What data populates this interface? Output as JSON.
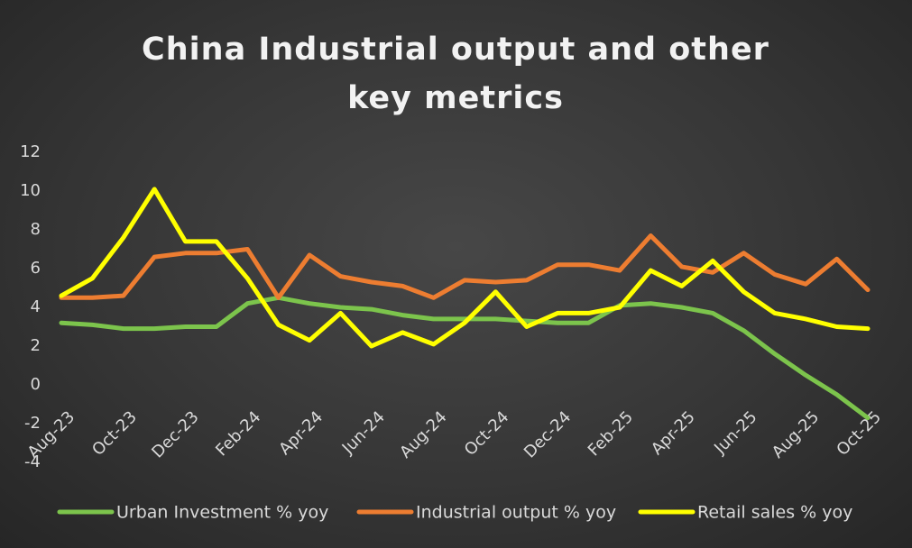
{
  "chart_data": {
    "type": "line",
    "title": "China Industrial output and other key metrics",
    "categories": [
      "Aug-23",
      null,
      "Oct-23",
      null,
      "Dec-23",
      null,
      "Feb-24",
      null,
      "Apr-24",
      null,
      "Jun-24",
      null,
      "Aug-24",
      null,
      "Oct-24",
      null,
      "Dec-24",
      null,
      "Feb-25",
      null,
      "Apr-25",
      null,
      "Jun-25",
      null,
      "Aug-25",
      null,
      "Oct-25"
    ],
    "series": [
      {
        "name": "Urban Investment % yoy",
        "color": "#7cc44c",
        "values": [
          3.2,
          3.1,
          2.9,
          2.9,
          3.0,
          3.0,
          4.2,
          4.5,
          4.2,
          4.0,
          3.9,
          3.6,
          3.4,
          3.4,
          3.4,
          3.3,
          3.2,
          3.2,
          4.1,
          4.2,
          4.0,
          3.7,
          2.8,
          1.6,
          0.5,
          -0.5,
          -1.7
        ]
      },
      {
        "name": "Industrial output % yoy",
        "color": "#ed7d31",
        "values": [
          4.5,
          4.5,
          4.6,
          6.6,
          6.8,
          6.8,
          7.0,
          4.5,
          6.7,
          5.6,
          5.3,
          5.1,
          4.5,
          5.4,
          5.3,
          5.4,
          6.2,
          6.2,
          5.9,
          7.7,
          6.1,
          5.8,
          6.8,
          5.7,
          5.2,
          6.5,
          4.9
        ]
      },
      {
        "name": "Retail sales % yoy",
        "color": "#ffff00",
        "values": [
          4.6,
          5.5,
          7.6,
          10.1,
          7.4,
          7.4,
          5.5,
          3.1,
          2.3,
          3.7,
          2.0,
          2.7,
          2.1,
          3.2,
          4.8,
          3.0,
          3.7,
          3.7,
          4.0,
          5.9,
          5.1,
          6.4,
          4.8,
          3.7,
          3.4,
          3.0,
          2.9
        ]
      }
    ],
    "ylim": [
      -4,
      12
    ],
    "yticks": [
      -4,
      -2,
      0,
      2,
      4,
      6,
      8,
      10,
      12
    ],
    "grid": false,
    "legend": "bottom"
  }
}
